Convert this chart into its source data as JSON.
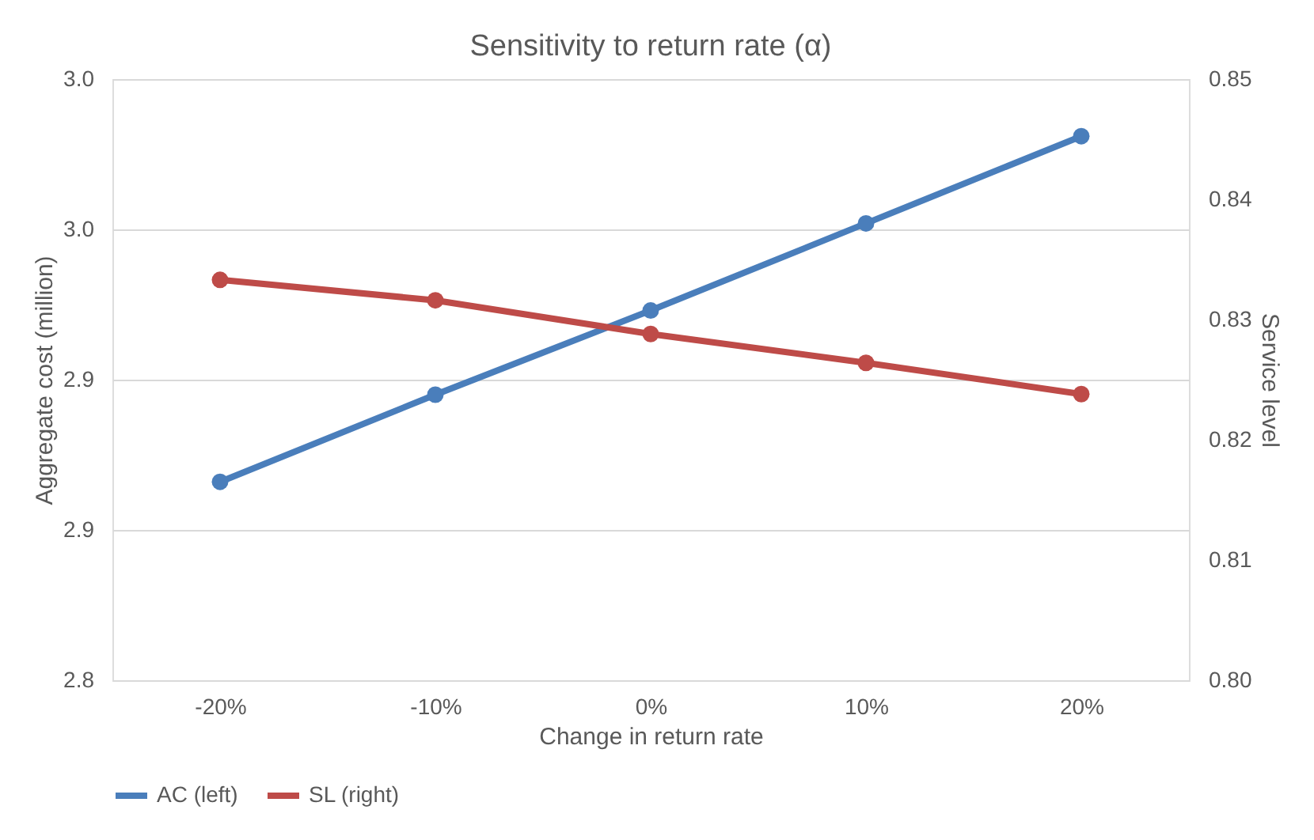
{
  "chart_data": {
    "type": "line",
    "title": "Sensitivity to return rate (α)",
    "xlabel": "Change in return rate",
    "ylabel": "Aggregate cost (million)",
    "y2label": "Service level",
    "categories": [
      "-20%",
      "-10%",
      "0%",
      "10%",
      "20%"
    ],
    "series": [
      {
        "name": "AC (left)",
        "color": "#4a7ebb",
        "values": [
          2.866,
          2.895,
          2.923,
          2.952,
          2.981
        ]
      },
      {
        "name": "SL (right)",
        "color": "#be4b48",
        "axis": "y2",
        "values": [
          0.8333,
          0.8316,
          0.8288,
          0.8264,
          0.8238
        ]
      }
    ],
    "ylim": [
      2.8,
      3.0
    ],
    "yticks": [
      {
        "value": 2.8,
        "label": "2.8"
      },
      {
        "value": 2.85,
        "label": "2.9"
      },
      {
        "value": 2.9,
        "label": "2.9"
      },
      {
        "value": 2.95,
        "label": "3.0"
      },
      {
        "value": 3.0,
        "label": "3.0"
      }
    ],
    "y2lim": [
      0.8,
      0.85
    ],
    "y2ticks": [
      {
        "value": 0.8,
        "label": "0.80"
      },
      {
        "value": 0.81,
        "label": "0.81"
      },
      {
        "value": 0.82,
        "label": "0.82"
      },
      {
        "value": 0.83,
        "label": "0.83"
      },
      {
        "value": 0.84,
        "label": "0.84"
      },
      {
        "value": 0.85,
        "label": "0.85"
      }
    ],
    "grid": "y",
    "legend": "bottom",
    "marker": "circle",
    "line_style": "solid"
  }
}
